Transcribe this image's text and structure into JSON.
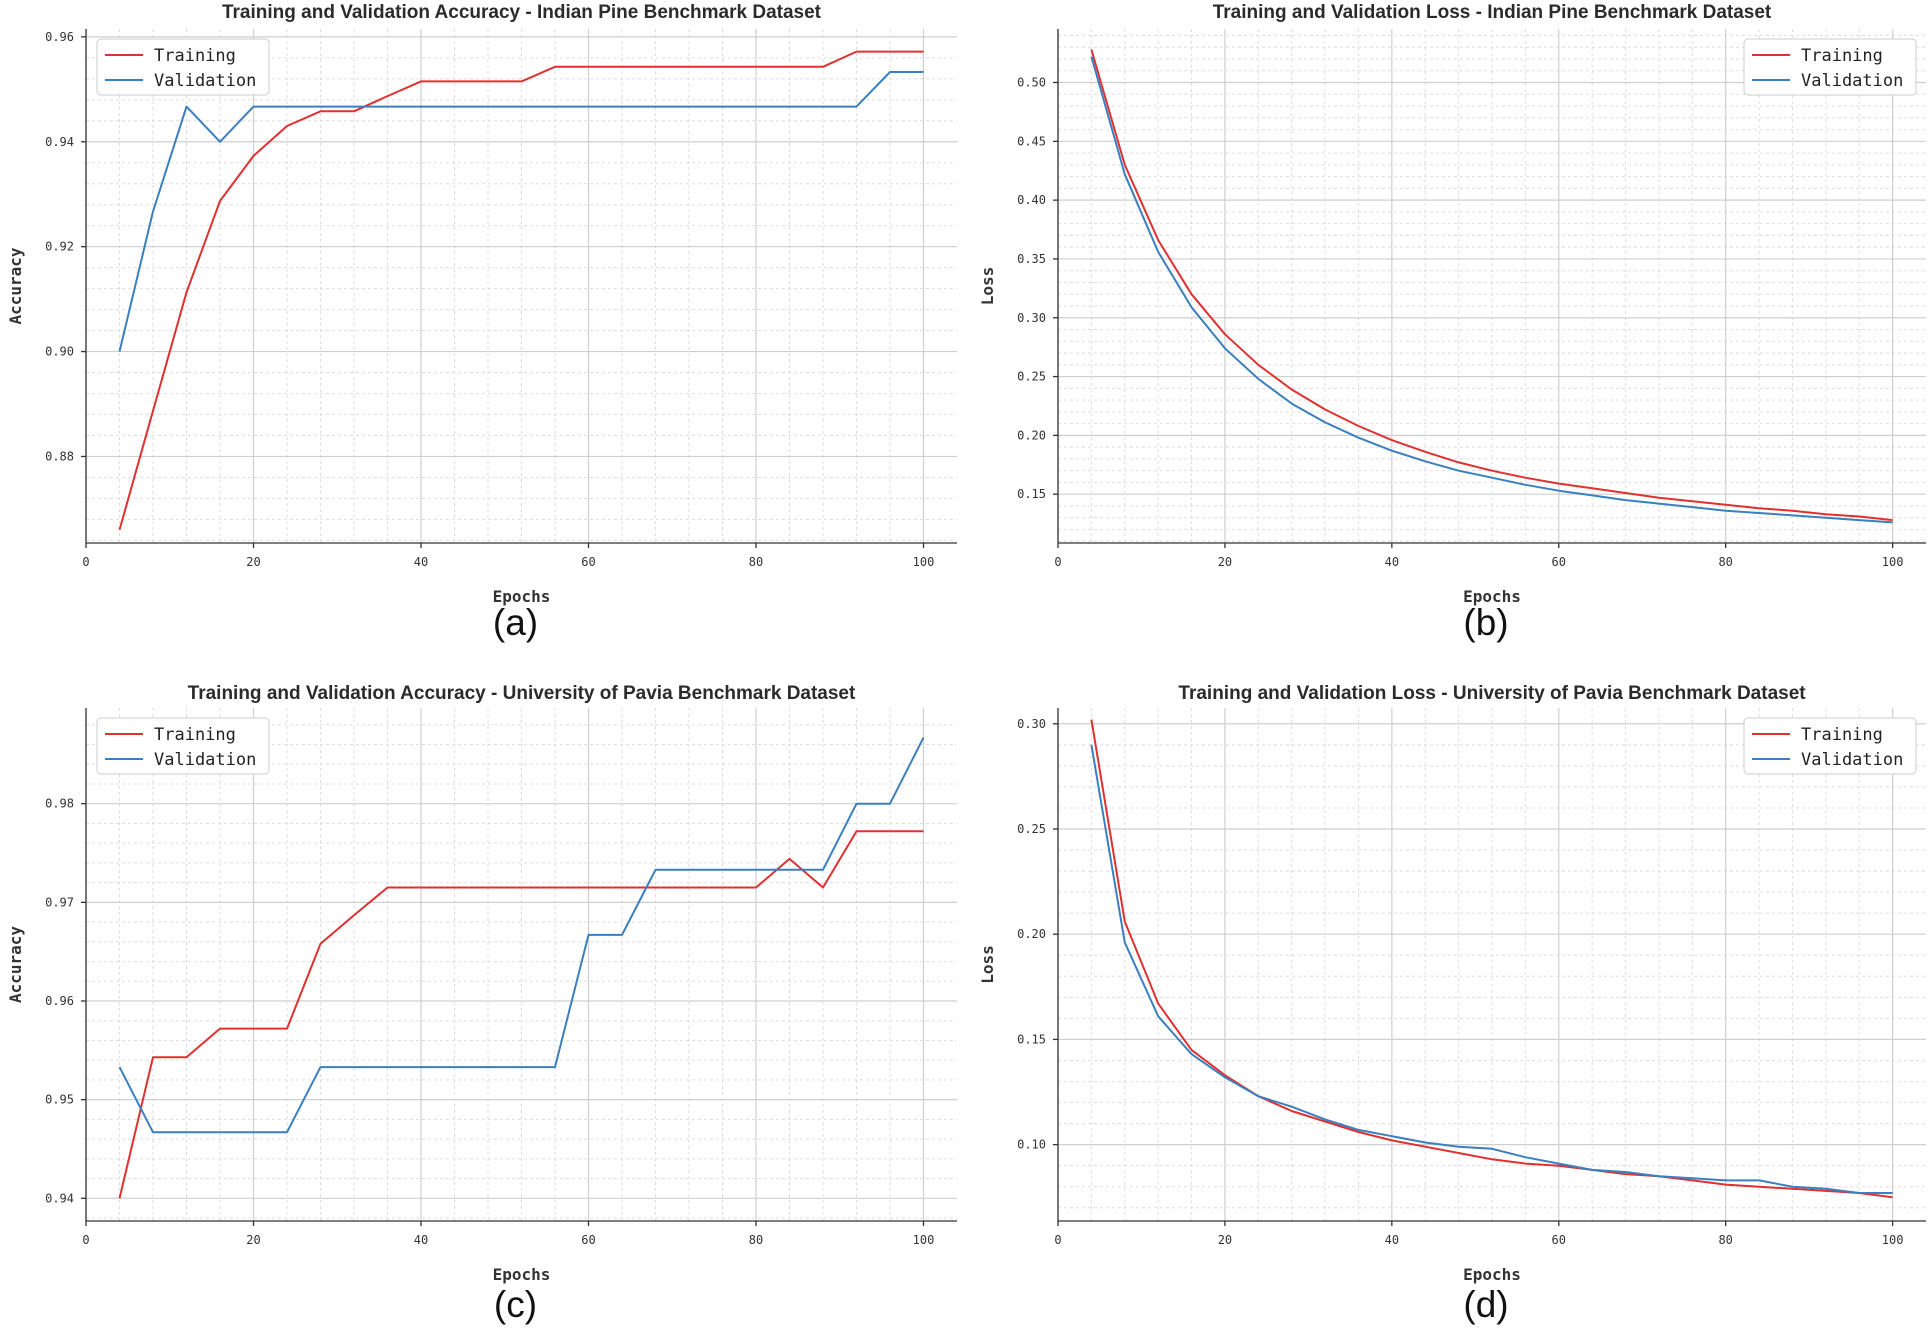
{
  "chart_data": [
    {
      "type": "line",
      "panel": "a",
      "caption": "(a)",
      "title": "Training and Validation Accuracy - Indian Pine Benchmark Dataset",
      "xlabel": "Epochs",
      "ylabel": "Accuracy",
      "xlim": [
        0,
        104
      ],
      "ylim": [
        0.8635,
        0.9615
      ],
      "xticks": [
        0,
        20,
        40,
        60,
        80,
        100
      ],
      "xtick_labels": [
        "0",
        "20",
        "40",
        "60",
        "80",
        "100"
      ],
      "yticks": [
        0.88,
        0.9,
        0.92,
        0.94,
        0.96
      ],
      "ytick_labels": [
        "0.88",
        "0.90",
        "0.92",
        "0.94",
        "0.96"
      ],
      "grid": true,
      "legend_position": "top-left",
      "x": [
        4,
        8,
        12,
        16,
        20,
        24,
        28,
        32,
        36,
        40,
        44,
        48,
        52,
        56,
        60,
        64,
        68,
        72,
        76,
        80,
        84,
        88,
        92,
        96,
        100
      ],
      "series": [
        {
          "name": "Training",
          "color": "#e03030",
          "values": [
            0.866,
            0.8887,
            0.9113,
            0.9287,
            0.9373,
            0.943,
            0.9458,
            0.9458,
            0.9487,
            0.9515,
            0.9515,
            0.9515,
            0.9515,
            0.9543,
            0.9543,
            0.9543,
            0.9543,
            0.9543,
            0.9543,
            0.9543,
            0.9543,
            0.9543,
            0.9572,
            0.9572,
            0.9572
          ]
        },
        {
          "name": "Validation",
          "color": "#3a7fbf",
          "values": [
            0.9,
            0.9267,
            0.9467,
            0.94,
            0.9467,
            0.9467,
            0.9467,
            0.9467,
            0.9467,
            0.9467,
            0.9467,
            0.9467,
            0.9467,
            0.9467,
            0.9467,
            0.9467,
            0.9467,
            0.9467,
            0.9467,
            0.9467,
            0.9467,
            0.9467,
            0.9467,
            0.9533,
            0.9533
          ]
        }
      ]
    },
    {
      "type": "line",
      "panel": "b",
      "caption": "(b)",
      "title": "Training and Validation Loss - Indian Pine Benchmark Dataset",
      "xlabel": "Epochs",
      "ylabel": "Loss",
      "xlim": [
        0,
        104
      ],
      "ylim": [
        0.1085,
        0.5455
      ],
      "xticks": [
        0,
        20,
        40,
        60,
        80,
        100
      ],
      "xtick_labels": [
        "0",
        "20",
        "40",
        "60",
        "80",
        "100"
      ],
      "yticks": [
        0.15,
        0.2,
        0.25,
        0.3,
        0.35,
        0.4,
        0.45,
        0.5
      ],
      "ytick_labels": [
        "0.15",
        "0.20",
        "0.25",
        "0.30",
        "0.35",
        "0.40",
        "0.45",
        "0.50"
      ],
      "grid": true,
      "legend_position": "top-right",
      "x": [
        4,
        8,
        12,
        16,
        20,
        24,
        28,
        32,
        36,
        40,
        44,
        48,
        52,
        56,
        60,
        64,
        68,
        72,
        76,
        80,
        84,
        88,
        92,
        96,
        100
      ],
      "series": [
        {
          "name": "Training",
          "color": "#e03030",
          "values": [
            0.528,
            0.43,
            0.366,
            0.32,
            0.286,
            0.26,
            0.239,
            0.222,
            0.208,
            0.196,
            0.186,
            0.177,
            0.17,
            0.164,
            0.159,
            0.155,
            0.151,
            0.147,
            0.144,
            0.141,
            0.138,
            0.136,
            0.133,
            0.131,
            0.128
          ]
        },
        {
          "name": "Validation",
          "color": "#3a7fbf",
          "values": [
            0.522,
            0.422,
            0.356,
            0.309,
            0.274,
            0.248,
            0.227,
            0.211,
            0.198,
            0.187,
            0.178,
            0.17,
            0.164,
            0.158,
            0.153,
            0.149,
            0.145,
            0.142,
            0.139,
            0.136,
            0.134,
            0.132,
            0.13,
            0.128,
            0.126
          ]
        }
      ]
    },
    {
      "type": "line",
      "panel": "c",
      "caption": "(c)",
      "title": "Training and Validation Accuracy - University of Pavia Benchmark Dataset",
      "xlabel": "Epochs",
      "ylabel": "Accuracy",
      "xlim": [
        0,
        104
      ],
      "ylim": [
        0.9377,
        0.9897
      ],
      "xticks": [
        0,
        20,
        40,
        60,
        80,
        100
      ],
      "xtick_labels": [
        "0",
        "20",
        "40",
        "60",
        "80",
        "100"
      ],
      "yticks": [
        0.94,
        0.95,
        0.96,
        0.97,
        0.98
      ],
      "ytick_labels": [
        "0.94",
        "0.95",
        "0.96",
        "0.97",
        "0.98"
      ],
      "grid": true,
      "legend_position": "top-left",
      "x": [
        4,
        8,
        12,
        16,
        20,
        24,
        28,
        32,
        36,
        40,
        44,
        48,
        52,
        56,
        60,
        64,
        68,
        72,
        76,
        80,
        84,
        88,
        92,
        96,
        100
      ],
      "series": [
        {
          "name": "Training",
          "color": "#e03030",
          "values": [
            0.94,
            0.9543,
            0.9543,
            0.9572,
            0.9572,
            0.9572,
            0.9658,
            0.9687,
            0.9715,
            0.9715,
            0.9715,
            0.9715,
            0.9715,
            0.9715,
            0.9715,
            0.9715,
            0.9715,
            0.9715,
            0.9715,
            0.9715,
            0.9744,
            0.9715,
            0.9772,
            0.9772,
            0.9772
          ]
        },
        {
          "name": "Validation",
          "color": "#3a7fbf",
          "values": [
            0.9533,
            0.9467,
            0.9467,
            0.9467,
            0.9467,
            0.9467,
            0.9533,
            0.9533,
            0.9533,
            0.9533,
            0.9533,
            0.9533,
            0.9533,
            0.9533,
            0.9667,
            0.9667,
            0.9733,
            0.9733,
            0.9733,
            0.9733,
            0.9733,
            0.9733,
            0.98,
            0.98,
            0.9867
          ]
        }
      ]
    },
    {
      "type": "line",
      "panel": "d",
      "caption": "(d)",
      "title": "Training and Validation Loss - University of Pavia Benchmark Dataset",
      "xlabel": "Epochs",
      "ylabel": "Loss",
      "xlim": [
        0,
        104
      ],
      "ylim": [
        0.0637,
        0.3075
      ],
      "xticks": [
        0,
        20,
        40,
        60,
        80,
        100
      ],
      "xtick_labels": [
        "0",
        "20",
        "40",
        "60",
        "80",
        "100"
      ],
      "yticks": [
        0.1,
        0.15,
        0.2,
        0.25,
        0.3
      ],
      "ytick_labels": [
        "0.10",
        "0.15",
        "0.20",
        "0.25",
        "0.30"
      ],
      "grid": true,
      "legend_position": "top-right",
      "x": [
        4,
        8,
        12,
        16,
        20,
        24,
        28,
        32,
        36,
        40,
        44,
        48,
        52,
        56,
        60,
        64,
        68,
        72,
        76,
        80,
        84,
        88,
        92,
        96,
        100
      ],
      "series": [
        {
          "name": "Training",
          "color": "#e03030",
          "values": [
            0.302,
            0.206,
            0.167,
            0.145,
            0.133,
            0.123,
            0.116,
            0.111,
            0.106,
            0.102,
            0.099,
            0.096,
            0.093,
            0.091,
            0.09,
            0.088,
            0.086,
            0.085,
            0.083,
            0.081,
            0.08,
            0.079,
            0.078,
            0.077,
            0.075
          ]
        },
        {
          "name": "Validation",
          "color": "#3a7fbf",
          "values": [
            0.29,
            0.196,
            0.161,
            0.143,
            0.132,
            0.123,
            0.118,
            0.112,
            0.107,
            0.104,
            0.101,
            0.099,
            0.098,
            0.094,
            0.091,
            0.088,
            0.087,
            0.085,
            0.084,
            0.083,
            0.083,
            0.08,
            0.079,
            0.077,
            0.077
          ]
        }
      ]
    }
  ]
}
